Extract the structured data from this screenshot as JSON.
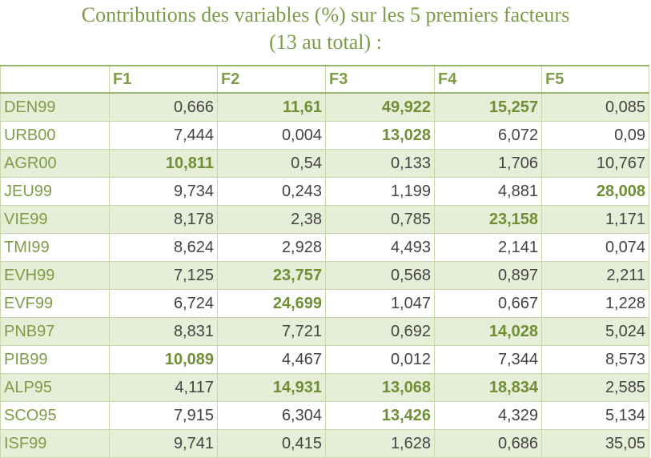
{
  "title_line1": "Contributions des variables (%) sur les 5 premiers facteurs",
  "title_line2": "(13 au total) :",
  "headers": [
    "",
    "F1",
    "F2",
    "F3",
    "F4",
    "F5"
  ],
  "colors": {
    "accent": "#7e9c48",
    "band": "#e7eed7",
    "border": "#c9d7ad"
  },
  "rows": [
    {
      "name": "DEN99",
      "values": [
        "0,666",
        "11,61",
        "49,922",
        "15,257",
        "0,085"
      ],
      "bold": [
        false,
        true,
        true,
        true,
        false
      ]
    },
    {
      "name": "URB00",
      "values": [
        "7,444",
        "0,004",
        "13,028",
        "6,072",
        "0,09"
      ],
      "bold": [
        false,
        false,
        true,
        false,
        false
      ]
    },
    {
      "name": "AGR00",
      "values": [
        "10,811",
        "0,54",
        "0,133",
        "1,706",
        "10,767"
      ],
      "bold": [
        true,
        false,
        false,
        false,
        false
      ]
    },
    {
      "name": "JEU99",
      "values": [
        "9,734",
        "0,243",
        "1,199",
        "4,881",
        "28,008"
      ],
      "bold": [
        false,
        false,
        false,
        false,
        true
      ]
    },
    {
      "name": "VIE99",
      "values": [
        "8,178",
        "2,38",
        "0,785",
        "23,158",
        "1,171"
      ],
      "bold": [
        false,
        false,
        false,
        true,
        false
      ]
    },
    {
      "name": "TMI99",
      "values": [
        "8,624",
        "2,928",
        "4,493",
        "2,141",
        "0,074"
      ],
      "bold": [
        false,
        false,
        false,
        false,
        false
      ]
    },
    {
      "name": "EVH99",
      "values": [
        "7,125",
        "23,757",
        "0,568",
        "0,897",
        "2,211"
      ],
      "bold": [
        false,
        true,
        false,
        false,
        false
      ]
    },
    {
      "name": "EVF99",
      "values": [
        "6,724",
        "24,699",
        "1,047",
        "0,667",
        "1,228"
      ],
      "bold": [
        false,
        true,
        false,
        false,
        false
      ]
    },
    {
      "name": "PNB97",
      "values": [
        "8,831",
        "7,721",
        "0,692",
        "14,028",
        "5,024"
      ],
      "bold": [
        false,
        false,
        false,
        true,
        false
      ]
    },
    {
      "name": "PIB99",
      "values": [
        "10,089",
        "4,467",
        "0,012",
        "7,344",
        "8,573"
      ],
      "bold": [
        true,
        false,
        false,
        false,
        false
      ]
    },
    {
      "name": "ALP95",
      "values": [
        "4,117",
        "14,931",
        "13,068",
        "18,834",
        "2,585"
      ],
      "bold": [
        false,
        true,
        true,
        true,
        false
      ]
    },
    {
      "name": "SCO95",
      "values": [
        "7,915",
        "6,304",
        "13,426",
        "4,329",
        "5,134"
      ],
      "bold": [
        false,
        false,
        true,
        false,
        false
      ]
    },
    {
      "name": "ISF99",
      "values": [
        "9,741",
        "0,415",
        "1,628",
        "0,686",
        "35,05"
      ],
      "bold": [
        false,
        false,
        false,
        false,
        false
      ]
    }
  ]
}
